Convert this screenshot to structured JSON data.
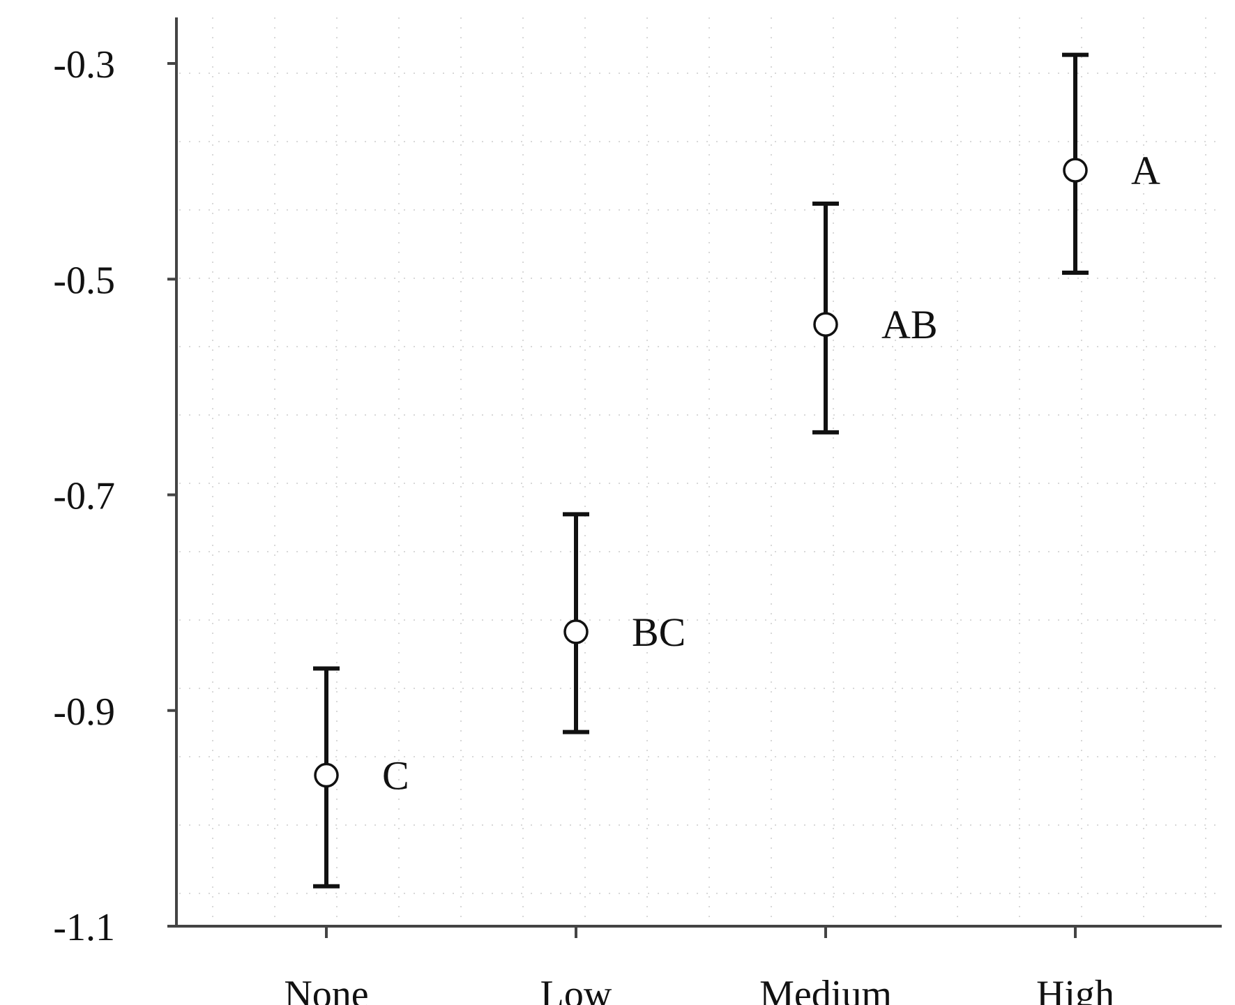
{
  "chart_data": {
    "type": "scatter",
    "categories": [
      "None",
      "Low",
      "Medium",
      "High"
    ],
    "series": [
      {
        "points": [
          {
            "category": "None",
            "mean": -0.96,
            "lower": -1.063,
            "upper": -0.861,
            "group_letter": "C"
          },
          {
            "category": "Low",
            "mean": -0.827,
            "lower": -0.92,
            "upper": -0.718,
            "group_letter": "BC"
          },
          {
            "category": "Medium",
            "mean": -0.542,
            "lower": -0.642,
            "upper": -0.43,
            "group_letter": "AB"
          },
          {
            "category": "High",
            "mean": -0.399,
            "lower": -0.494,
            "upper": -0.292,
            "group_letter": "A"
          }
        ]
      }
    ],
    "yticks": [
      "-0.3",
      "-0.5",
      "-0.7",
      "-0.9",
      "-1.1"
    ],
    "ytick_values": [
      -0.3,
      -0.5,
      -0.7,
      -0.9,
      -1.1
    ],
    "ylim": [
      -1.1,
      -0.26
    ],
    "title": "",
    "xlabel": "",
    "ylabel": "",
    "error_bars": true,
    "marker": "open-circle",
    "grid": "dotted",
    "legend": "none"
  },
  "colors": {
    "axis": "#444444",
    "errorbar": "#111111",
    "marker_stroke": "#111111",
    "marker_fill": "#ffffff",
    "grid": "#d8d8d8",
    "text": "#111111"
  }
}
